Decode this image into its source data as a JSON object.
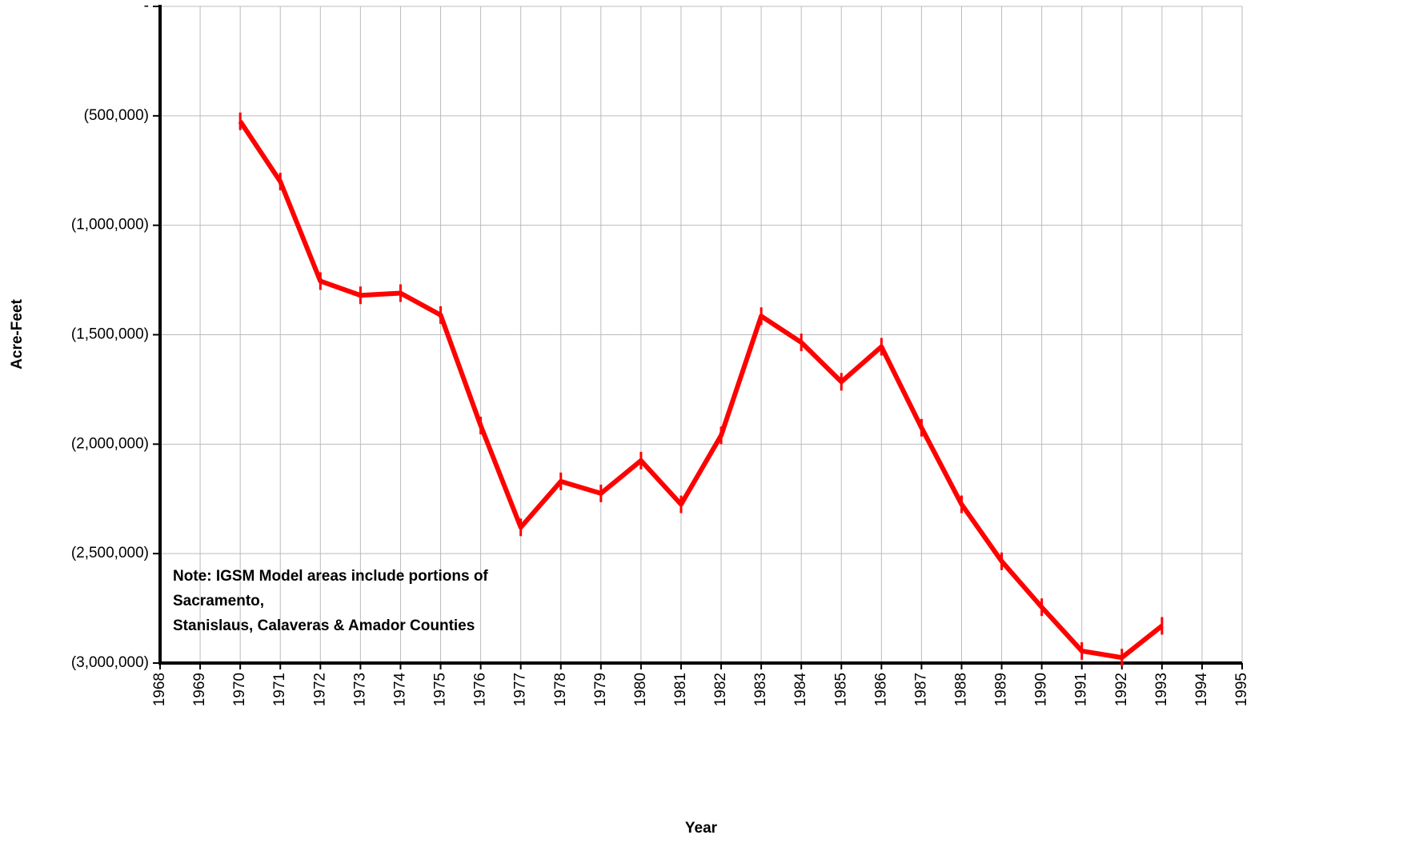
{
  "chart_data": {
    "type": "line",
    "xlabel": "Year",
    "ylabel": "Acre-Feet",
    "annotation": [
      "Note: IGSM Model areas include portions of",
      "Sacramento,",
      "Stanislaus, Calaveras & Amador Counties"
    ],
    "x": [
      1970,
      1971,
      1972,
      1973,
      1974,
      1975,
      1976,
      1977,
      1978,
      1979,
      1980,
      1981,
      1982,
      1983,
      1984,
      1985,
      1986,
      1987,
      1988,
      1989,
      1990,
      1991,
      1992,
      1993
    ],
    "values": [
      -525000,
      -800000,
      -1255000,
      -1320000,
      -1310000,
      -1410000,
      -1915000,
      -2380000,
      -2170000,
      -2225000,
      -2075000,
      -2275000,
      -1960000,
      -1415000,
      -1535000,
      -1715000,
      -1555000,
      -1925000,
      -2275000,
      -2535000,
      -2745000,
      -2945000,
      -2975000,
      -2830000
    ],
    "color": "#ff0000",
    "xlim": [
      1968,
      1995
    ],
    "xticks": [
      1968,
      1969,
      1970,
      1971,
      1972,
      1973,
      1974,
      1975,
      1976,
      1977,
      1978,
      1979,
      1980,
      1981,
      1982,
      1983,
      1984,
      1985,
      1986,
      1987,
      1988,
      1989,
      1990,
      1991,
      1992,
      1993,
      1994,
      1995
    ],
    "ylim": [
      -3000000,
      0
    ],
    "yticks": [
      {
        "value": 0,
        "label": "-"
      },
      {
        "value": -500000,
        "label": "(500,000)"
      },
      {
        "value": -1000000,
        "label": "(1,000,000)"
      },
      {
        "value": -1500000,
        "label": "(1,500,000)"
      },
      {
        "value": -2000000,
        "label": "(2,000,000)"
      },
      {
        "value": -2500000,
        "label": "(2,500,000)"
      },
      {
        "value": -3000000,
        "label": "(3,000,000)"
      }
    ],
    "grid": true
  }
}
